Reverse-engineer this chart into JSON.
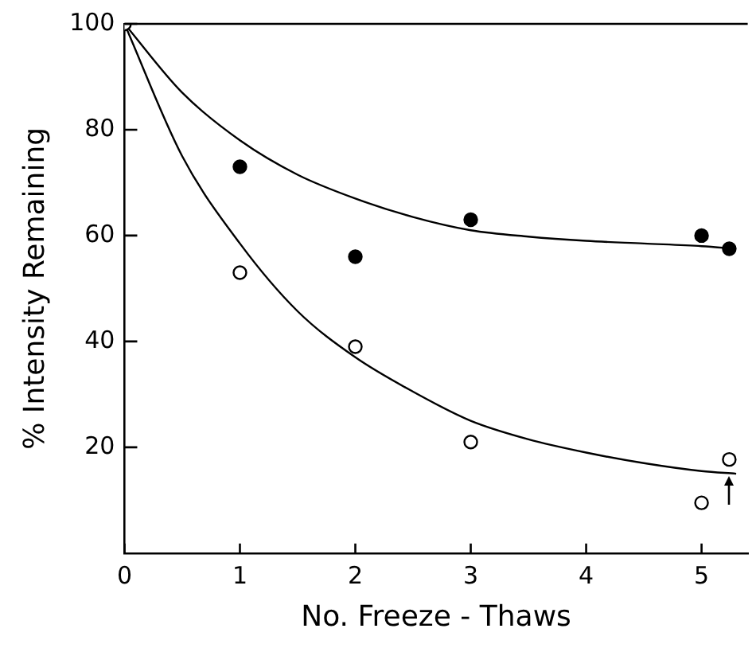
{
  "chart_data": {
    "type": "scatter",
    "xlabel": "No. Freeze - Thaws",
    "ylabel": "% Intensity Remaining",
    "xlim": [
      0,
      5.4
    ],
    "xticks": [
      0,
      1,
      2,
      3,
      4,
      5
    ],
    "ylim": [
      0,
      100
    ],
    "yticks": [
      20,
      40,
      60,
      80,
      100
    ],
    "grid": false,
    "legend": false,
    "series": [
      {
        "color": "#000000",
        "marker": "circle",
        "x": [
          1,
          2,
          3,
          5,
          5.24
        ],
        "values": [
          73,
          56,
          63,
          60,
          57.5
        ]
      },
      {
        "color": "#000000",
        "marker": "circle",
        "x": [
          0,
          1,
          2,
          3,
          5,
          5.24
        ],
        "values": [
          100,
          53,
          39,
          21,
          9.5,
          17.7
        ]
      },
      {
        "type": "line",
        "color": "#000000",
        "marker": "none",
        "x": [
          0,
          0.5,
          1,
          1.5,
          2,
          2.5,
          3,
          3.5,
          4,
          4.5,
          5,
          5.3
        ],
        "values": [
          100,
          87,
          78,
          71.5,
          67,
          63.5,
          61,
          59.8,
          59,
          58.5,
          58,
          57.5
        ]
      },
      {
        "type": "line",
        "color": "#000000",
        "marker": "none",
        "x": [
          0,
          0.5,
          1,
          1.5,
          2,
          2.5,
          3,
          3.5,
          4,
          4.5,
          5,
          5.3
        ],
        "values": [
          100,
          75,
          58.5,
          45.7,
          37,
          30.5,
          25,
          21.5,
          19,
          17,
          15.5,
          15
        ]
      }
    ]
  }
}
